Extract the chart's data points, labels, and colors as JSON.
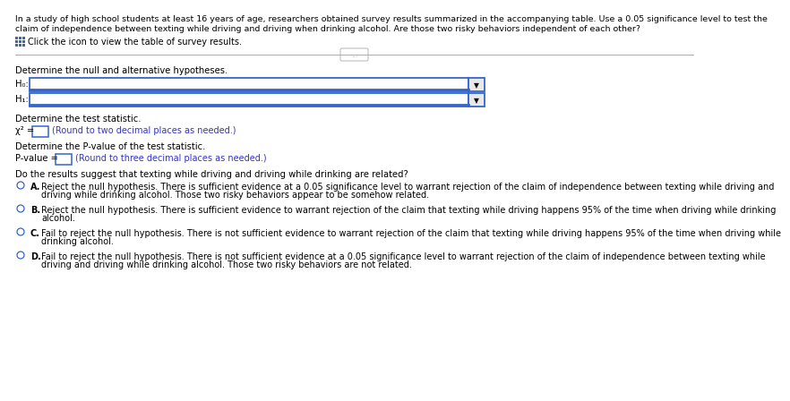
{
  "bg_color": "#ffffff",
  "header_line1": "In a study of high school students at least 16 years of age, researchers obtained survey results summarized in the accompanying table. Use a 0.05 significance level to test the",
  "header_line2": "claim of independence between texting while driving and driving when drinking alcohol. Are those two risky behaviors independent of each other?",
  "icon_text": "Click the icon to view the table of survey results.",
  "section1_label": "Determine the null and alternative hypotheses.",
  "h0_label": "H₀:",
  "h1_label": "H₁:",
  "section2_label": "Determine the test statistic.",
  "chi_sq_prefix": "χ² =",
  "chi_sq_hint": "(Round to two decimal places as needed.)",
  "section3_label": "Determine the P-value of the test statistic.",
  "pvalue_prefix": "P-value =",
  "pvalue_hint": "(Round to three decimal places as needed.)",
  "section4_label": "Do the results suggest that texting while driving and driving while drinking are related?",
  "optA_letter": "A.",
  "optA_line1": "Reject the null hypothesis. There is sufficient evidence at a 0.05 significance level to warrant rejection of the claim of independence between texting while driving and",
  "optA_line2": "driving while drinking alcohol. Those two risky behaviors appear to be somehow related.",
  "optB_letter": "B.",
  "optB_line1": "Reject the null hypothesis. There is sufficient evidence to warrant rejection of the claim that texting while driving happens 95% of the time when driving while drinking",
  "optB_line2": "alcohol.",
  "optC_letter": "C.",
  "optC_line1": "Fail to reject the null hypothesis. There is not sufficient evidence to warrant rejection of the claim that texting while driving happens 95% of the time when driving while",
  "optC_line2": "drinking alcohol.",
  "optD_letter": "D.",
  "optD_line1": "Fail to reject the null hypothesis. There is not sufficient evidence at a 0.05 significance level to warrant rejection of the claim of independence between texting while",
  "optD_line2": "driving and driving while drinking alcohol. Those two risky behaviors are not related.",
  "text_color": "#000000",
  "blue_text": "#3333cc",
  "dropdown_border": "#3366cc",
  "separator_color": "#aaaaaa",
  "radio_color": "#3366cc",
  "font_size_header": 6.8,
  "font_size_body": 7.2,
  "font_size_small": 7.0
}
